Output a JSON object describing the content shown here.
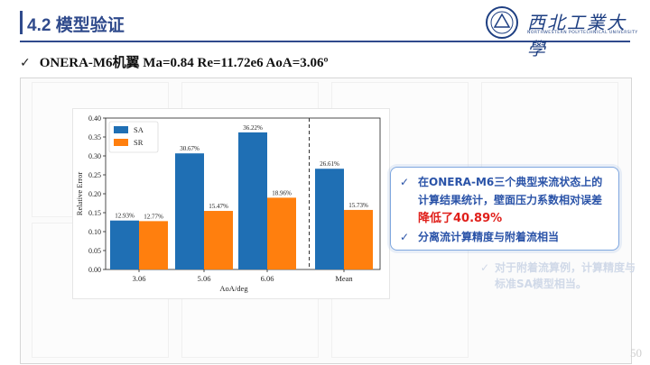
{
  "header": {
    "title": "4.2 模型验证",
    "logo_text": "西北工業大學",
    "logo_subtext": "NORTHWESTERN POLYTECHNICAL UNIVERSITY"
  },
  "subtitle": {
    "check": "✓",
    "text": "ONERA-M6机翼 Ma=0.84 Re=11.72e6 AoA=3.06º"
  },
  "callout": {
    "check": "✓",
    "line1": "在ONERA-M6三个典型来流状态上的计算结果统计，壁面压力系数相对误差",
    "line1_red": "降低了40.89%",
    "line2": "分离流计算精度与附着流相当"
  },
  "faded_note": {
    "check": "✓",
    "text": "对于附着流算例，计算精度与标准SA模型相当。"
  },
  "page_number": "50",
  "colors": {
    "sa": "#1f6fb4",
    "sr": "#ff7f0e",
    "title_blue": "#2f4a8c",
    "callout_blue": "#2a53a8",
    "emphasis_red": "#e0201b"
  },
  "chart_data": {
    "type": "bar",
    "categories": [
      "3.06",
      "5.06",
      "6.06",
      "Mean"
    ],
    "series": [
      {
        "name": "SA",
        "values": [
          0.1293,
          0.3067,
          0.3622,
          0.2661
        ],
        "labels": [
          "12.93%",
          "30.67%",
          "36.22%",
          "26.61%"
        ]
      },
      {
        "name": "SR",
        "values": [
          0.1277,
          0.1547,
          0.1896,
          0.1573
        ],
        "labels": [
          "12.77%",
          "15.47%",
          "18.96%",
          "15.73%"
        ]
      }
    ],
    "xlabel": "AoA/deg",
    "ylabel": "Relative Error",
    "ylim": [
      0.0,
      0.4
    ],
    "yticks": [
      "0.00",
      "0.05",
      "0.10",
      "0.15",
      "0.20",
      "0.25",
      "0.30",
      "0.35",
      "0.40"
    ],
    "legend_position": "top-left",
    "separator_before": "Mean"
  }
}
